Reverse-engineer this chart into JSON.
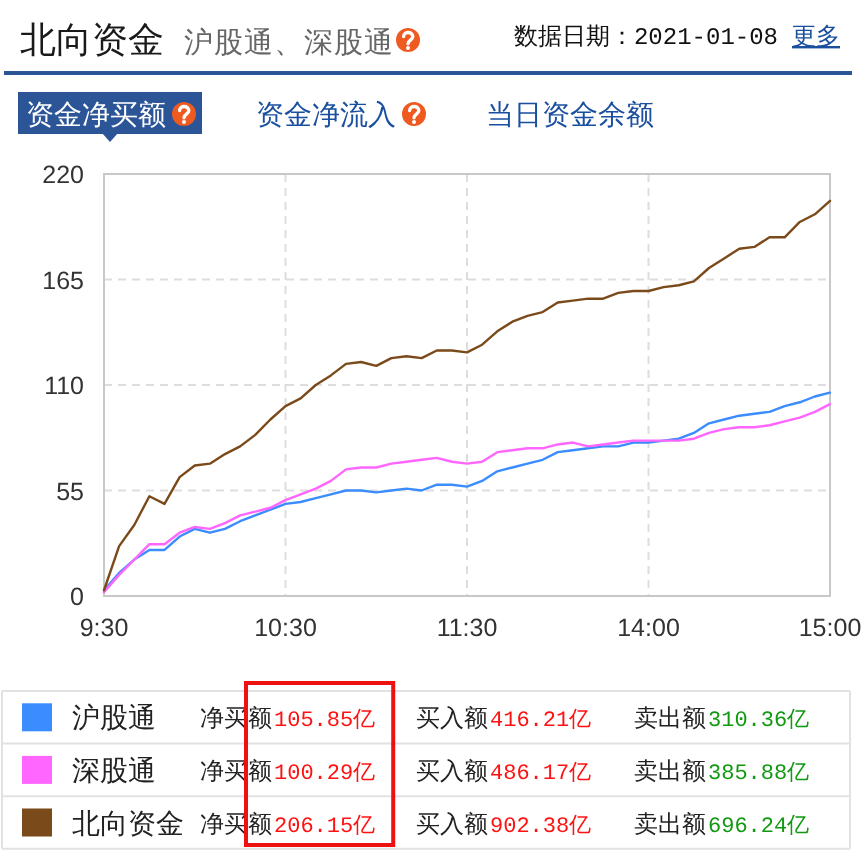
{
  "chart_data": {
    "type": "line",
    "title": "北向资金",
    "subtitle": "沪股通、深股通",
    "annotations": [
      "数据日期：2021-01-08",
      "更多",
      "资金净买额",
      "资金净流入",
      "当日资金余额",
      "净买额",
      "105.85亿",
      "买入额",
      "416.21亿",
      "卖出额",
      "310.36亿",
      "净买额",
      "100.29亿",
      "买入额",
      "486.17亿",
      "卖出额",
      "385.88亿",
      "净买额",
      "206.15亿",
      "买入额",
      "902.38亿",
      "卖出额",
      "696.24亿"
    ],
    "categories": [
      "9:30",
      null,
      null,
      null,
      null,
      null,
      null,
      null,
      null,
      null,
      null,
      null,
      "10:30",
      null,
      null,
      null,
      null,
      null,
      null,
      null,
      null,
      null,
      null,
      null,
      "11:30",
      null,
      null,
      null,
      null,
      null,
      null,
      null,
      null,
      null,
      null,
      null,
      "14:00",
      null,
      null,
      null,
      null,
      null,
      null,
      null,
      null,
      null,
      null,
      null,
      "15:00"
    ],
    "ylim": [
      0,
      220
    ],
    "yticks": [
      0,
      55,
      110,
      165,
      220
    ],
    "grid": true,
    "legend": "bottom",
    "series": [
      {
        "name": "沪股通",
        "color": "#3a8cff",
        "values": [
          3,
          12,
          19,
          24,
          24,
          31,
          35,
          33,
          35,
          39,
          42,
          45,
          48,
          49,
          51,
          53,
          55,
          55,
          54,
          55,
          56,
          55,
          58,
          58,
          57,
          60,
          65,
          67,
          69,
          71,
          75,
          76,
          77,
          78,
          78,
          80,
          80,
          81,
          82,
          85,
          90,
          92,
          94,
          95,
          96,
          99,
          101,
          104,
          106
        ]
      },
      {
        "name": "深股通",
        "color": "#ff66ff",
        "values": [
          2,
          11,
          19,
          27,
          27,
          33,
          36,
          35,
          38,
          42,
          44,
          46,
          50,
          53,
          56,
          60,
          66,
          67,
          67,
          69,
          70,
          71,
          72,
          70,
          69,
          70,
          75,
          76,
          77,
          77,
          79,
          80,
          78,
          79,
          80,
          81,
          81,
          81,
          81,
          82,
          85,
          87,
          88,
          88,
          89,
          91,
          93,
          96,
          100
        ]
      },
      {
        "name": "北向资金",
        "color": "#7b4a1a",
        "values": [
          3,
          26,
          37,
          52,
          48,
          62,
          68,
          69,
          74,
          78,
          84,
          92,
          99,
          103,
          110,
          115,
          121,
          122,
          120,
          124,
          125,
          124,
          128,
          128,
          127,
          131,
          138,
          143,
          146,
          148,
          153,
          154,
          155,
          155,
          158,
          159,
          159,
          161,
          162,
          164,
          171,
          176,
          181,
          182,
          187,
          187,
          195,
          199,
          206
        ]
      }
    ]
  }
}
